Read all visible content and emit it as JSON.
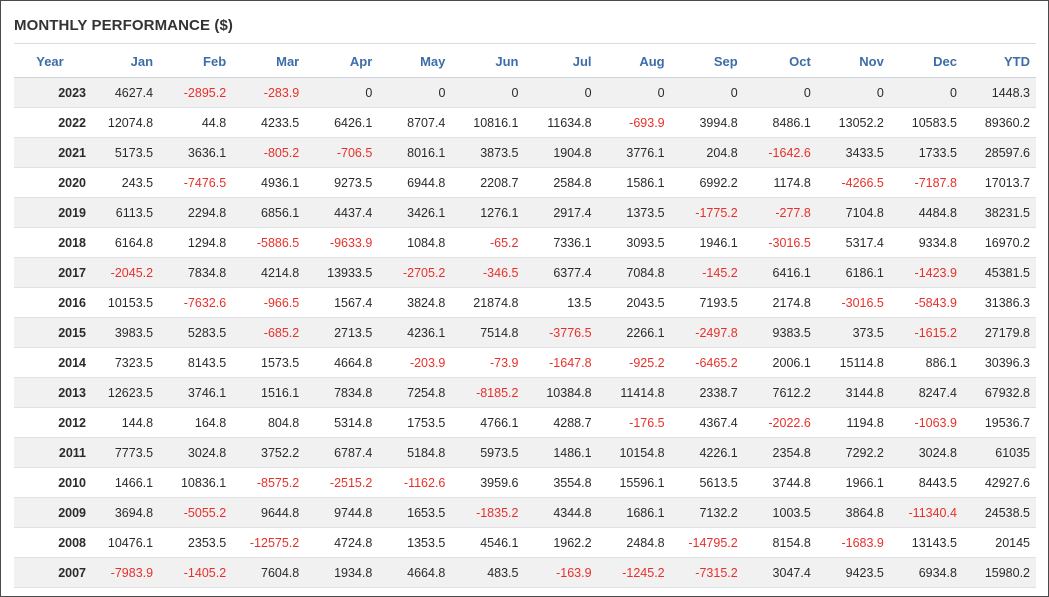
{
  "title": "MONTHLY PERFORMANCE ($)",
  "columns": [
    "Year",
    "Jan",
    "Feb",
    "Mar",
    "Apr",
    "May",
    "Jun",
    "Jul",
    "Aug",
    "Sep",
    "Oct",
    "Nov",
    "Dec",
    "YTD"
  ],
  "colors": {
    "header_text": "#3d6da8",
    "negative": "#e8302b",
    "stripe": "#f1f1f1"
  },
  "rows": [
    [
      "2023",
      "4627.4",
      "-2895.2",
      "-283.9",
      "0",
      "0",
      "0",
      "0",
      "0",
      "0",
      "0",
      "0",
      "0",
      "1448.3"
    ],
    [
      "2022",
      "12074.8",
      "44.8",
      "4233.5",
      "6426.1",
      "8707.4",
      "10816.1",
      "11634.8",
      "-693.9",
      "3994.8",
      "8486.1",
      "13052.2",
      "10583.5",
      "89360.2"
    ],
    [
      "2021",
      "5173.5",
      "3636.1",
      "-805.2",
      "-706.5",
      "8016.1",
      "3873.5",
      "1904.8",
      "3776.1",
      "204.8",
      "-1642.6",
      "3433.5",
      "1733.5",
      "28597.6"
    ],
    [
      "2020",
      "243.5",
      "-7476.5",
      "4936.1",
      "9273.5",
      "6944.8",
      "2208.7",
      "2584.8",
      "1586.1",
      "6992.2",
      "1174.8",
      "-4266.5",
      "-7187.8",
      "17013.7"
    ],
    [
      "2019",
      "6113.5",
      "2294.8",
      "6856.1",
      "4437.4",
      "3426.1",
      "1276.1",
      "2917.4",
      "1373.5",
      "-1775.2",
      "-277.8",
      "7104.8",
      "4484.8",
      "38231.5"
    ],
    [
      "2018",
      "6164.8",
      "1294.8",
      "-5886.5",
      "-9633.9",
      "1084.8",
      "-65.2",
      "7336.1",
      "3093.5",
      "1946.1",
      "-3016.5",
      "5317.4",
      "9334.8",
      "16970.2"
    ],
    [
      "2017",
      "-2045.2",
      "7834.8",
      "4214.8",
      "13933.5",
      "-2705.2",
      "-346.5",
      "6377.4",
      "7084.8",
      "-145.2",
      "6416.1",
      "6186.1",
      "-1423.9",
      "45381.5"
    ],
    [
      "2016",
      "10153.5",
      "-7632.6",
      "-966.5",
      "1567.4",
      "3824.8",
      "21874.8",
      "13.5",
      "2043.5",
      "7193.5",
      "2174.8",
      "-3016.5",
      "-5843.9",
      "31386.3"
    ],
    [
      "2015",
      "3983.5",
      "5283.5",
      "-685.2",
      "2713.5",
      "4236.1",
      "7514.8",
      "-3776.5",
      "2266.1",
      "-2497.8",
      "9383.5",
      "373.5",
      "-1615.2",
      "27179.8"
    ],
    [
      "2014",
      "7323.5",
      "8143.5",
      "1573.5",
      "4664.8",
      "-203.9",
      "-73.9",
      "-1647.8",
      "-925.2",
      "-6465.2",
      "2006.1",
      "15114.8",
      "886.1",
      "30396.3"
    ],
    [
      "2013",
      "12623.5",
      "3746.1",
      "1516.1",
      "7834.8",
      "7254.8",
      "-8185.2",
      "10384.8",
      "11414.8",
      "2338.7",
      "7612.2",
      "3144.8",
      "8247.4",
      "67932.8"
    ],
    [
      "2012",
      "144.8",
      "164.8",
      "804.8",
      "5314.8",
      "1753.5",
      "4766.1",
      "4288.7",
      "-176.5",
      "4367.4",
      "-2022.6",
      "1194.8",
      "-1063.9",
      "19536.7"
    ],
    [
      "2011",
      "7773.5",
      "3024.8",
      "3752.2",
      "6787.4",
      "5184.8",
      "5973.5",
      "1486.1",
      "10154.8",
      "4226.1",
      "2354.8",
      "7292.2",
      "3024.8",
      "61035"
    ],
    [
      "2010",
      "1466.1",
      "10836.1",
      "-8575.2",
      "-2515.2",
      "-1162.6",
      "3959.6",
      "3554.8",
      "15596.1",
      "5613.5",
      "3744.8",
      "1966.1",
      "8443.5",
      "42927.6"
    ],
    [
      "2009",
      "3694.8",
      "-5055.2",
      "9644.8",
      "9744.8",
      "1653.5",
      "-1835.2",
      "4344.8",
      "1686.1",
      "7132.2",
      "1003.5",
      "3864.8",
      "-11340.4",
      "24538.5"
    ],
    [
      "2008",
      "10476.1",
      "2353.5",
      "-12575.2",
      "4724.8",
      "1353.5",
      "4546.1",
      "1962.2",
      "2484.8",
      "-14795.2",
      "8154.8",
      "-1683.9",
      "13143.5",
      "20145"
    ],
    [
      "2007",
      "-7983.9",
      "-1405.2",
      "7604.8",
      "1934.8",
      "4664.8",
      "483.5",
      "-163.9",
      "-1245.2",
      "-7315.2",
      "3047.4",
      "9423.5",
      "6934.8",
      "15980.2"
    ]
  ]
}
